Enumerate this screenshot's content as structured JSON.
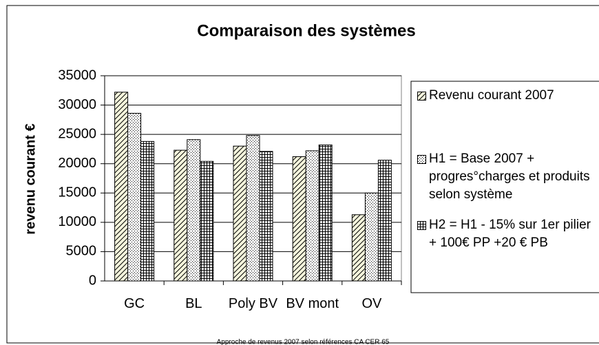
{
  "chart_data": {
    "type": "bar",
    "title": "Comparaison des systèmes",
    "y_label": "revenu courant €",
    "footnote": "Approche de revenus 2007 selon références CA CER 65",
    "categories": [
      "GC",
      "BL",
      "Poly BV",
      "BV mont",
      "OV"
    ],
    "series": [
      {
        "name": "Revenu courant 2007",
        "color": "#000000",
        "pattern": "diagonal",
        "values": [
          32200,
          22300,
          23000,
          21200,
          11300
        ]
      },
      {
        "name": "H1 = Base 2007 + progres°charges et produits selon système",
        "color": "#000000",
        "pattern": "dots",
        "values": [
          28600,
          24100,
          24800,
          22200,
          15000
        ]
      },
      {
        "name": "H2 = H1 - 15% sur 1er pilier + 100€ PP +20 € PB",
        "color": "#000000",
        "pattern": "grid",
        "values": [
          23800,
          20400,
          22100,
          23200,
          20600
        ]
      }
    ],
    "ylim": [
      0,
      35000
    ],
    "yticks": [
      0,
      5000,
      10000,
      15000,
      20000,
      25000,
      30000,
      35000
    ],
    "grid": true,
    "legend": "right"
  }
}
